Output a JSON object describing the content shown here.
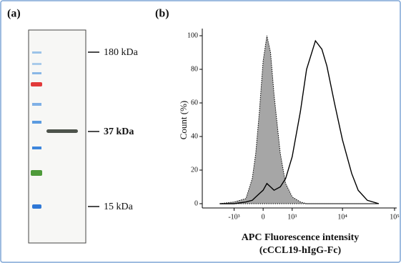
{
  "panel_a": {
    "label": "(a)",
    "markers": [
      "180 kDa",
      "37 kDa",
      "15 kDa"
    ]
  },
  "chart_data": {
    "type": "histogram-overlay",
    "label": "(b)",
    "y_label": "Count (%)",
    "x_label": [
      "APC Fluorescence intensity",
      "(cCCL19-hIgG-Fc)"
    ],
    "x": [
      -2000,
      -1000,
      -500,
      -300,
      -200,
      -100,
      0,
      100,
      200,
      300,
      500,
      700,
      1000,
      1500,
      2000,
      3000,
      4000,
      5000,
      7000,
      10000,
      15000,
      20000,
      30000,
      50000
    ],
    "series": [
      {
        "color": "#a6a6a6",
        "fill": true,
        "values": [
          0,
          1,
          3,
          15,
          30,
          55,
          85,
          100,
          90,
          65,
          30,
          12,
          4,
          1,
          0,
          0,
          0,
          0,
          0,
          0,
          0,
          0,
          0,
          0
        ]
      },
      {
        "color": "#000000",
        "fill": false,
        "values": [
          0,
          0,
          1,
          2,
          4,
          6,
          8,
          12,
          10,
          8,
          10,
          15,
          28,
          55,
          80,
          97,
          92,
          82,
          60,
          38,
          18,
          8,
          2,
          0
        ]
      }
    ],
    "xlim": [
      -4400,
      110000
    ],
    "xticks": [
      {
        "value": -1000,
        "label": "-10³"
      },
      0,
      {
        "value": 1000,
        "label": "10³"
      },
      {
        "value": 10000,
        "label": "10⁴"
      },
      {
        "value": 100000,
        "label": "10⁵"
      }
    ],
    "ylim": [
      0,
      100
    ],
    "yticks": [
      0,
      20,
      40,
      60,
      80,
      100
    ]
  }
}
